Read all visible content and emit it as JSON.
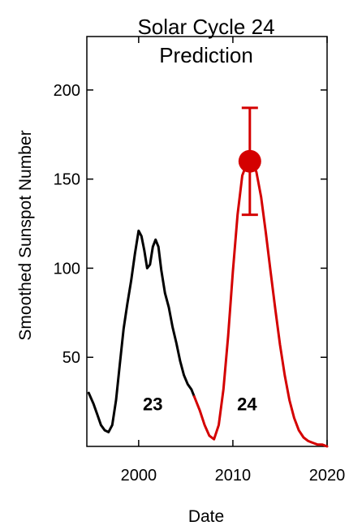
{
  "chart_data": {
    "type": "line",
    "title_line1": "Solar Cycle 24",
    "title_line2": "Prediction",
    "xlabel": "Date",
    "ylabel": "Smoothed Sunspot Number",
    "xlim": [
      1994.5,
      2020
    ],
    "ylim": [
      0,
      230
    ],
    "x_ticks": [
      2000,
      2010,
      2020
    ],
    "y_ticks": [
      50,
      100,
      150,
      200
    ],
    "grid": false,
    "colors": {
      "observed": "#000000",
      "predicted": "#d40000",
      "frame": "#000000"
    },
    "series": [
      {
        "x": [
          1994.7,
          1995.2,
          1995.6,
          1996.0,
          1996.4,
          1996.8,
          1997.2,
          1997.6,
          1998.0,
          1998.4,
          1998.8,
          1999.2,
          1999.6,
          2000.0,
          2000.3,
          2000.6,
          2000.9,
          2001.2,
          2001.5,
          2001.8,
          2002.1,
          2002.4,
          2002.8,
          2003.2,
          2003.6,
          2004.0,
          2004.4,
          2004.8,
          2005.2,
          2005.6,
          2005.9
        ],
        "values": [
          30,
          24,
          18,
          12,
          9,
          8,
          12,
          26,
          46,
          66,
          80,
          93,
          108,
          121,
          118,
          110,
          100,
          102,
          112,
          116,
          112,
          99,
          86,
          78,
          67,
          58,
          48,
          40,
          35,
          32,
          28
        ]
      },
      {
        "x": [
          2005.9,
          2006.5,
          2007.0,
          2007.5,
          2008.0,
          2008.5,
          2009.0,
          2009.5,
          2010.0,
          2010.5,
          2011.0,
          2011.5,
          2011.8,
          2012.1,
          2012.5,
          2013.0,
          2013.5,
          2014.0,
          2014.5,
          2015.0,
          2015.5,
          2016.0,
          2016.5,
          2017.0,
          2017.5,
          2018.0,
          2018.5,
          2019.0,
          2019.5,
          2020.0
        ],
        "values": [
          28,
          20,
          12,
          6,
          4,
          12,
          32,
          62,
          98,
          130,
          152,
          159,
          160,
          159,
          154,
          140,
          120,
          98,
          77,
          57,
          40,
          26,
          16,
          9,
          5,
          3,
          2,
          1,
          1,
          0
        ]
      }
    ],
    "cycle_labels": [
      {
        "text": "23",
        "x": 2001.5,
        "y": 24
      },
      {
        "text": "24",
        "x": 2011.5,
        "y": 24
      }
    ],
    "prediction_point": {
      "x": 2011.8,
      "y": 160,
      "err_low": 130,
      "err_high": 190
    }
  }
}
